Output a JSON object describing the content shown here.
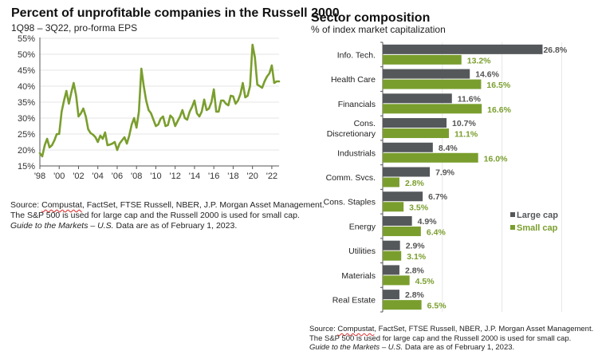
{
  "left_panel": {
    "title": "Percent of unprofitable companies in the Russell 2000",
    "subtitle": "1Q98 – 3Q22, pro-forma EPS",
    "source": {
      "prefix": "Source: ",
      "underlined": "Compustat",
      "line1_rest": ", FactSet, FTSE Russell, NBER, J.P. Morgan Asset Management.",
      "line2": "The S&P 500 is used for large cap and the Russell 2000 is used for small cap.",
      "line3_italic": "Guide to the Markets – U.S.",
      "line3_rest": " Data are as of February 1, 2023."
    }
  },
  "right_panel": {
    "title": "Sector composition",
    "subtitle": "% of index market capitalization",
    "source": {
      "prefix": "Source: ",
      "underlined": "Compustat",
      "line1_rest": ", FactSet, FTSE Russell, NBER, J.P. Morgan Asset Management.",
      "line2": "The S&P 500 is used for large cap and the Russell 2000 is used for small cap.",
      "line3_italic": "Guide to the Markets – U.S.",
      "line3_rest": " Data are as of February 1, 2023."
    }
  },
  "colors": {
    "line": "#7a9e2e",
    "large_cap": "#55585b",
    "small_cap": "#7a9e2e",
    "grid": "#e6e6e6",
    "axis": "#555555"
  },
  "chart_data": [
    {
      "type": "line",
      "title": "Percent of unprofitable companies in the Russell 2000",
      "subtitle": "1Q98 – 3Q22, pro-forma EPS",
      "xlabel": "",
      "ylabel": "",
      "ylim": [
        15,
        55
      ],
      "xlim": [
        1998,
        2022.75
      ],
      "yticks": [
        15,
        20,
        25,
        30,
        35,
        40,
        45,
        50,
        55
      ],
      "ytick_labels": [
        "15%",
        "20%",
        "25%",
        "30%",
        "35%",
        "40%",
        "45%",
        "50%",
        "55%"
      ],
      "xticks": [
        1998,
        2000,
        2002,
        2004,
        2006,
        2008,
        2010,
        2012,
        2014,
        2016,
        2018,
        2020,
        2022
      ],
      "xtick_labels": [
        "'98",
        "'00",
        "'02",
        "'04",
        "'06",
        "'08",
        "'10",
        "'12",
        "'14",
        "'16",
        "'18",
        "'20",
        "'22"
      ],
      "grid": "horizontal",
      "series": [
        {
          "name": "Unprofitable companies (%)",
          "x": [
            1998.0,
            1998.25,
            1998.5,
            1998.75,
            1999.0,
            1999.25,
            1999.5,
            1999.75,
            2000.0,
            2000.25,
            2000.5,
            2000.75,
            2001.0,
            2001.25,
            2001.5,
            2001.75,
            2002.0,
            2002.25,
            2002.5,
            2002.75,
            2003.0,
            2003.25,
            2003.5,
            2003.75,
            2004.0,
            2004.25,
            2004.5,
            2004.75,
            2005.0,
            2005.25,
            2005.5,
            2005.75,
            2006.0,
            2006.25,
            2006.5,
            2006.75,
            2007.0,
            2007.25,
            2007.5,
            2007.75,
            2008.0,
            2008.25,
            2008.5,
            2008.75,
            2009.0,
            2009.25,
            2009.5,
            2009.75,
            2010.0,
            2010.25,
            2010.5,
            2010.75,
            2011.0,
            2011.25,
            2011.5,
            2011.75,
            2012.0,
            2012.25,
            2012.5,
            2012.75,
            2013.0,
            2013.25,
            2013.5,
            2013.75,
            2014.0,
            2014.25,
            2014.5,
            2014.75,
            2015.0,
            2015.25,
            2015.5,
            2015.75,
            2016.0,
            2016.25,
            2016.5,
            2016.75,
            2017.0,
            2017.25,
            2017.5,
            2017.75,
            2018.0,
            2018.25,
            2018.5,
            2018.75,
            2019.0,
            2019.25,
            2019.5,
            2019.75,
            2020.0,
            2020.25,
            2020.5,
            2020.75,
            2021.0,
            2021.25,
            2021.5,
            2021.75,
            2022.0,
            2022.25,
            2022.5,
            2022.75
          ],
          "values": [
            19.0,
            18.0,
            21.5,
            23.5,
            20.8,
            21.5,
            23.0,
            25.0,
            25.0,
            32.0,
            35.5,
            38.5,
            34.5,
            38.0,
            41.0,
            37.0,
            30.5,
            31.5,
            33.0,
            30.5,
            26.5,
            25.3,
            24.8,
            24.0,
            22.5,
            24.5,
            23.5,
            25.5,
            21.5,
            21.7,
            22.0,
            22.5,
            20.0,
            22.0,
            23.0,
            24.0,
            22.0,
            24.5,
            28.0,
            30.0,
            27.0,
            32.0,
            45.5,
            40.0,
            35.5,
            32.5,
            31.5,
            29.5,
            27.5,
            28.0,
            29.8,
            30.5,
            27.5,
            27.8,
            30.8,
            30.0,
            27.5,
            29.0,
            30.5,
            32.5,
            30.0,
            29.5,
            32.0,
            33.5,
            35.5,
            31.5,
            30.5,
            32.0,
            35.8,
            32.5,
            33.0,
            35.0,
            39.0,
            32.0,
            32.0,
            35.5,
            35.5,
            34.5,
            34.0,
            37.0,
            36.8,
            34.5,
            35.5,
            37.5,
            41.0,
            36.5,
            37.0,
            40.0,
            53.0,
            49.0,
            40.5,
            40.0,
            39.5,
            41.5,
            43.0,
            44.0,
            46.5,
            41.0,
            41.5,
            41.5
          ]
        }
      ]
    },
    {
      "type": "bar",
      "orientation": "horizontal",
      "title": "Sector composition",
      "subtitle": "% of index market capitalization",
      "xlabel": "",
      "ylabel": "",
      "xlim": [
        0,
        30
      ],
      "grid": "vertical",
      "gridlines_at": [
        10,
        20,
        30
      ],
      "legend_position": "right-middle",
      "categories": [
        "Info. Tech.",
        "Health Care",
        "Financials",
        "Cons. Discretionary",
        "Industrials",
        "Comm. Svcs.",
        "Cons. Staples",
        "Energy",
        "Utilities",
        "Materials",
        "Real Estate"
      ],
      "category_lines": [
        [
          "Info. Tech."
        ],
        [
          "Health Care"
        ],
        [
          "Financials"
        ],
        [
          "Cons.",
          "Discretionary"
        ],
        [
          "Industrials"
        ],
        [
          "Comm. Svcs."
        ],
        [
          "Cons. Staples"
        ],
        [
          "Energy"
        ],
        [
          "Utilities"
        ],
        [
          "Materials"
        ],
        [
          "Real Estate"
        ]
      ],
      "series": [
        {
          "name": "Large cap",
          "values": [
            26.8,
            14.6,
            11.6,
            10.7,
            8.4,
            7.9,
            6.7,
            4.9,
            2.9,
            2.8,
            2.8
          ],
          "labels": [
            "26.8%",
            "14.6%",
            "11.6%",
            "10.7%",
            "8.4%",
            "7.9%",
            "6.7%",
            "4.9%",
            "2.9%",
            "2.8%",
            "2.8%"
          ]
        },
        {
          "name": "Small cap",
          "values": [
            13.2,
            16.5,
            16.6,
            11.1,
            16.0,
            2.8,
            3.5,
            6.4,
            3.1,
            4.5,
            6.5
          ],
          "labels": [
            "13.2%",
            "16.5%",
            "16.6%",
            "11.1%",
            "16.0%",
            "2.8%",
            "3.5%",
            "6.4%",
            "3.1%",
            "4.5%",
            "6.5%"
          ]
        }
      ]
    }
  ]
}
